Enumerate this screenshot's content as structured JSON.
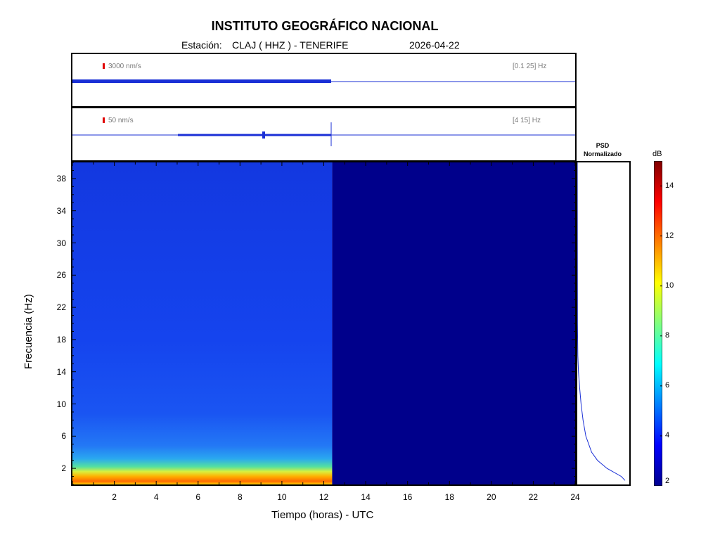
{
  "header": {
    "title": "INSTITUTO GEOGRÁFICO NACIONAL",
    "station_label": "Estación:",
    "station_value": "CLAJ ( HHZ ) - TENERIFE",
    "date": "2026-04-22"
  },
  "traces": [
    {
      "scale": "3000 nm/s",
      "band": "[0.1 25] Hz"
    },
    {
      "scale": "50 nm/s",
      "band": "[4 15] Hz"
    }
  ],
  "psd": {
    "title_line1": "PSD",
    "title_line2": "Normalizado"
  },
  "colorbar": {
    "unit": "dB",
    "min": 2,
    "max": 15,
    "ticks": [
      2,
      4,
      6,
      8,
      10,
      12,
      14
    ],
    "colors": [
      "#00008f",
      "#0000ff",
      "#0080ff",
      "#00ffff",
      "#80ff80",
      "#ffff00",
      "#ff8000",
      "#ff0000",
      "#800000"
    ]
  },
  "chart_data": {
    "type": "heatmap",
    "title": "INSTITUTO GEOGRÁFICO NACIONAL",
    "xlabel": "Tiempo (horas) - UTC",
    "ylabel": "Frecuencia  (Hz)",
    "xlim": [
      0,
      24
    ],
    "ylim": [
      0,
      40
    ],
    "x_ticks": [
      2,
      4,
      6,
      8,
      10,
      12,
      14,
      16,
      18,
      20,
      22,
      24
    ],
    "y_ticks": [
      2,
      6,
      10,
      14,
      18,
      22,
      26,
      30,
      34,
      38
    ],
    "data_end_hour": 12.4,
    "empty_color": "#00008b",
    "psd_profile": [
      {
        "f": 0.5,
        "p": 1.0
      },
      {
        "f": 1,
        "p": 0.92
      },
      {
        "f": 2,
        "p": 0.62
      },
      {
        "f": 3,
        "p": 0.42
      },
      {
        "f": 4,
        "p": 0.3
      },
      {
        "f": 6,
        "p": 0.18
      },
      {
        "f": 8,
        "p": 0.12
      },
      {
        "f": 10,
        "p": 0.08
      },
      {
        "f": 12,
        "p": 0.05
      },
      {
        "f": 14,
        "p": 0.025
      },
      {
        "f": 16,
        "p": 0.012
      },
      {
        "f": 20,
        "p": 0.004
      },
      {
        "f": 40,
        "p": 0.0
      }
    ]
  }
}
